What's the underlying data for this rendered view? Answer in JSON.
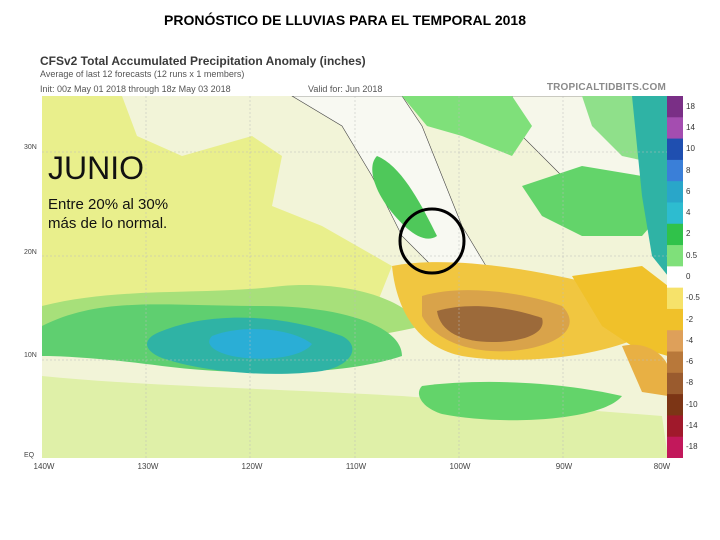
{
  "slide": {
    "title": "PRONÓSTICO DE LLUVIAS PARA EL TEMPORAL 2018"
  },
  "map": {
    "title": "CFSv2 Total Accumulated Precipitation Anomaly (inches)",
    "subtitle_1": "Average of last 12 forecasts (12 runs x 1 members)",
    "subtitle_2": "Init: 00z May 01 2018 through 18z May 03 2018",
    "valid": "Valid for: Jun 2018",
    "credit": "TROPICALTIDBITS.COM",
    "lat_labels": [
      "30N",
      "20N",
      "10N",
      "EQ"
    ],
    "lon_labels": [
      "140W",
      "130W",
      "120W",
      "110W",
      "100W",
      "90W",
      "80W"
    ],
    "colorbar_labels": [
      "18",
      "14",
      "10",
      "8",
      "6",
      "4",
      "2",
      "0.5",
      "0",
      "-0.5",
      "-2",
      "-4",
      "-6",
      "-8",
      "-10",
      "-14",
      "-18"
    ],
    "colorbar_colors": [
      "#7a2f86",
      "#a44db0",
      "#1f4fb0",
      "#3a7fd8",
      "#29a6c9",
      "#2dbcd0",
      "#30c24a",
      "#7fe07a",
      "#ffffff",
      "#f6e26a",
      "#f0c12a",
      "#dea05a",
      "#b8783a",
      "#9a5b2e",
      "#7c3515",
      "#a0192b",
      "#c2185b"
    ]
  },
  "overlay": {
    "month": "JUNIO",
    "line1": "Entre 20% al 30%",
    "line2": "más de lo normal."
  },
  "colors": {
    "ocean_base": "#f2f4d8",
    "wet": "#63d46a",
    "very_wet": "#29b9c9",
    "dry": "#f1c640",
    "very_dry": "#9c6a3a",
    "highlight_circle": "#000000"
  }
}
